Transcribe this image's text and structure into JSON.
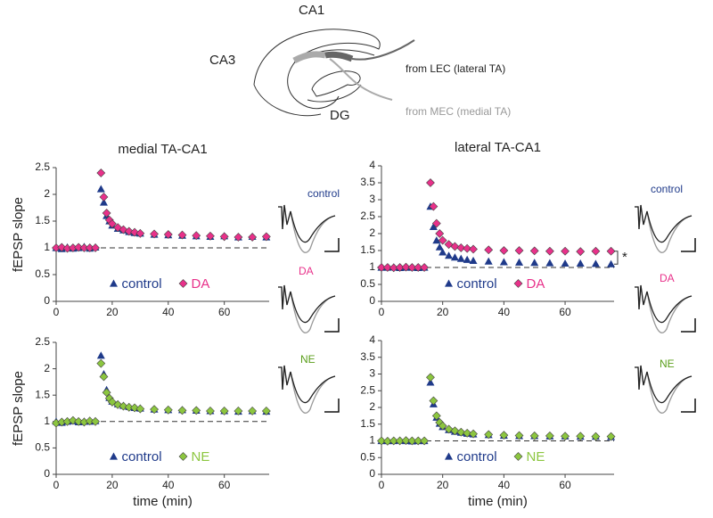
{
  "diagram": {
    "labels": {
      "ca1": "CA1",
      "ca3": "CA3",
      "dg": "DG",
      "lec": "from LEC (lateral TA)",
      "mec": "from MEC (medial TA)"
    }
  },
  "insets": {
    "left": [
      "control",
      "DA",
      "NE"
    ],
    "right": [
      "control",
      "DA",
      "NE"
    ]
  },
  "chart_data": [
    {
      "type": "scatter",
      "title": "medial TA-CA1",
      "y_label": "fEPSP slope",
      "legend": "bottom",
      "reference_line": 1,
      "x": [
        0,
        2,
        4,
        6,
        8,
        10,
        12,
        14,
        16,
        17,
        18,
        19,
        20,
        22,
        24,
        26,
        28,
        30,
        35,
        40,
        45,
        50,
        55,
        60,
        65,
        70,
        75
      ],
      "xlim": [
        0,
        76
      ],
      "xticks": [
        0,
        20,
        40,
        60
      ],
      "ylim": [
        0,
        2.5
      ],
      "yticks": [
        0,
        0.5,
        1,
        1.5,
        2,
        2.5
      ],
      "series": [
        {
          "name": "control",
          "color": "#1f3a8a",
          "marker": "triangle",
          "values": [
            1,
            0.98,
            1.01,
            0.99,
            1,
            1.02,
            0.99,
            1.01,
            2.1,
            1.85,
            1.6,
            1.5,
            1.42,
            1.36,
            1.33,
            1.3,
            1.28,
            1.27,
            1.25,
            1.24,
            1.23,
            1.22,
            1.21,
            1.22,
            1.2,
            1.21,
            1.2
          ]
        },
        {
          "name": "DA",
          "color": "#e8318a",
          "marker": "diamond",
          "values": [
            1,
            1.01,
            0.99,
            1,
            1.01,
            1,
            1,
            1,
            2.4,
            1.95,
            1.65,
            1.52,
            1.45,
            1.38,
            1.34,
            1.31,
            1.29,
            1.27,
            1.26,
            1.25,
            1.24,
            1.23,
            1.22,
            1.21,
            1.2,
            1.2,
            1.21
          ]
        }
      ]
    },
    {
      "type": "scatter",
      "title": "lateral TA-CA1",
      "legend": "bottom",
      "reference_line": 1,
      "annotation": "*",
      "x": [
        0,
        2,
        4,
        6,
        8,
        10,
        12,
        14,
        16,
        17,
        18,
        19,
        20,
        22,
        24,
        26,
        28,
        30,
        35,
        40,
        45,
        50,
        55,
        60,
        65,
        70,
        75
      ],
      "xlim": [
        0,
        76
      ],
      "xticks": [
        0,
        20,
        40,
        60
      ],
      "ylim": [
        0,
        4
      ],
      "yticks": [
        0,
        0.5,
        1,
        1.5,
        2,
        2.5,
        3,
        3.5,
        4
      ],
      "series": [
        {
          "name": "control",
          "color": "#1f3a8a",
          "marker": "triangle",
          "values": [
            1,
            1,
            1.01,
            0.99,
            1,
            1,
            0.99,
            1,
            2.8,
            2.2,
            1.8,
            1.6,
            1.45,
            1.35,
            1.3,
            1.26,
            1.23,
            1.2,
            1.18,
            1.16,
            1.15,
            1.14,
            1.13,
            1.12,
            1.12,
            1.11,
            1.1
          ]
        },
        {
          "name": "DA",
          "color": "#e8318a",
          "marker": "diamond",
          "values": [
            1,
            1,
            0.99,
            1,
            1.01,
            1,
            1,
            1,
            3.5,
            2.8,
            2.3,
            2.0,
            1.8,
            1.68,
            1.62,
            1.58,
            1.56,
            1.54,
            1.52,
            1.5,
            1.5,
            1.49,
            1.48,
            1.48,
            1.47,
            1.48,
            1.48
          ]
        }
      ]
    },
    {
      "type": "scatter",
      "y_label": "fEPSP slope",
      "x_label": "time (min)",
      "legend": "bottom",
      "reference_line": 1,
      "x": [
        0,
        2,
        4,
        6,
        8,
        10,
        12,
        14,
        16,
        17,
        18,
        19,
        20,
        22,
        24,
        26,
        28,
        30,
        35,
        40,
        45,
        50,
        55,
        60,
        65,
        70,
        75
      ],
      "xlim": [
        0,
        76
      ],
      "xticks": [
        0,
        20,
        40,
        60
      ],
      "ylim": [
        0,
        2.5
      ],
      "yticks": [
        0,
        0.5,
        1,
        1.5,
        2,
        2.5
      ],
      "series": [
        {
          "name": "control",
          "color": "#1f3a8a",
          "marker": "triangle",
          "values": [
            1,
            0.98,
            1,
            1.01,
            0.99,
            1,
            1,
            1.01,
            2.25,
            1.9,
            1.6,
            1.45,
            1.38,
            1.33,
            1.3,
            1.28,
            1.26,
            1.25,
            1.23,
            1.22,
            1.22,
            1.21,
            1.2,
            1.2,
            1.19,
            1.2,
            1.19
          ]
        },
        {
          "name": "NE",
          "color": "#8cc63f",
          "marker": "diamond",
          "values": [
            0.97,
            0.99,
            1,
            1.02,
            1,
            0.99,
            1.01,
            1,
            2.1,
            1.85,
            1.55,
            1.44,
            1.37,
            1.32,
            1.29,
            1.27,
            1.26,
            1.24,
            1.23,
            1.22,
            1.21,
            1.21,
            1.2,
            1.2,
            1.2,
            1.2,
            1.2
          ]
        }
      ]
    },
    {
      "type": "scatter",
      "x_label": "time (min)",
      "legend": "bottom",
      "reference_line": 1,
      "x": [
        0,
        2,
        4,
        6,
        8,
        10,
        12,
        14,
        16,
        17,
        18,
        19,
        20,
        22,
        24,
        26,
        28,
        30,
        35,
        40,
        45,
        50,
        55,
        60,
        65,
        70,
        75
      ],
      "xlim": [
        0,
        76
      ],
      "xticks": [
        0,
        20,
        40,
        60
      ],
      "ylim": [
        0,
        4
      ],
      "yticks": [
        0,
        0.5,
        1,
        1.5,
        2,
        2.5,
        3,
        3.5,
        4
      ],
      "series": [
        {
          "name": "control",
          "color": "#1f3a8a",
          "marker": "triangle",
          "values": [
            1,
            1,
            1,
            1.01,
            1,
            0.99,
            1,
            1,
            2.75,
            2.1,
            1.7,
            1.52,
            1.42,
            1.33,
            1.28,
            1.25,
            1.22,
            1.2,
            1.18,
            1.16,
            1.15,
            1.15,
            1.14,
            1.14,
            1.13,
            1.13,
            1.12
          ]
        },
        {
          "name": "NE",
          "color": "#8cc63f",
          "marker": "diamond",
          "values": [
            1,
            0.99,
            1,
            1,
            1.01,
            1,
            1,
            1,
            2.9,
            2.2,
            1.75,
            1.55,
            1.45,
            1.35,
            1.3,
            1.26,
            1.23,
            1.21,
            1.19,
            1.17,
            1.16,
            1.15,
            1.15,
            1.14,
            1.14,
            1.13,
            1.13
          ]
        }
      ]
    }
  ]
}
